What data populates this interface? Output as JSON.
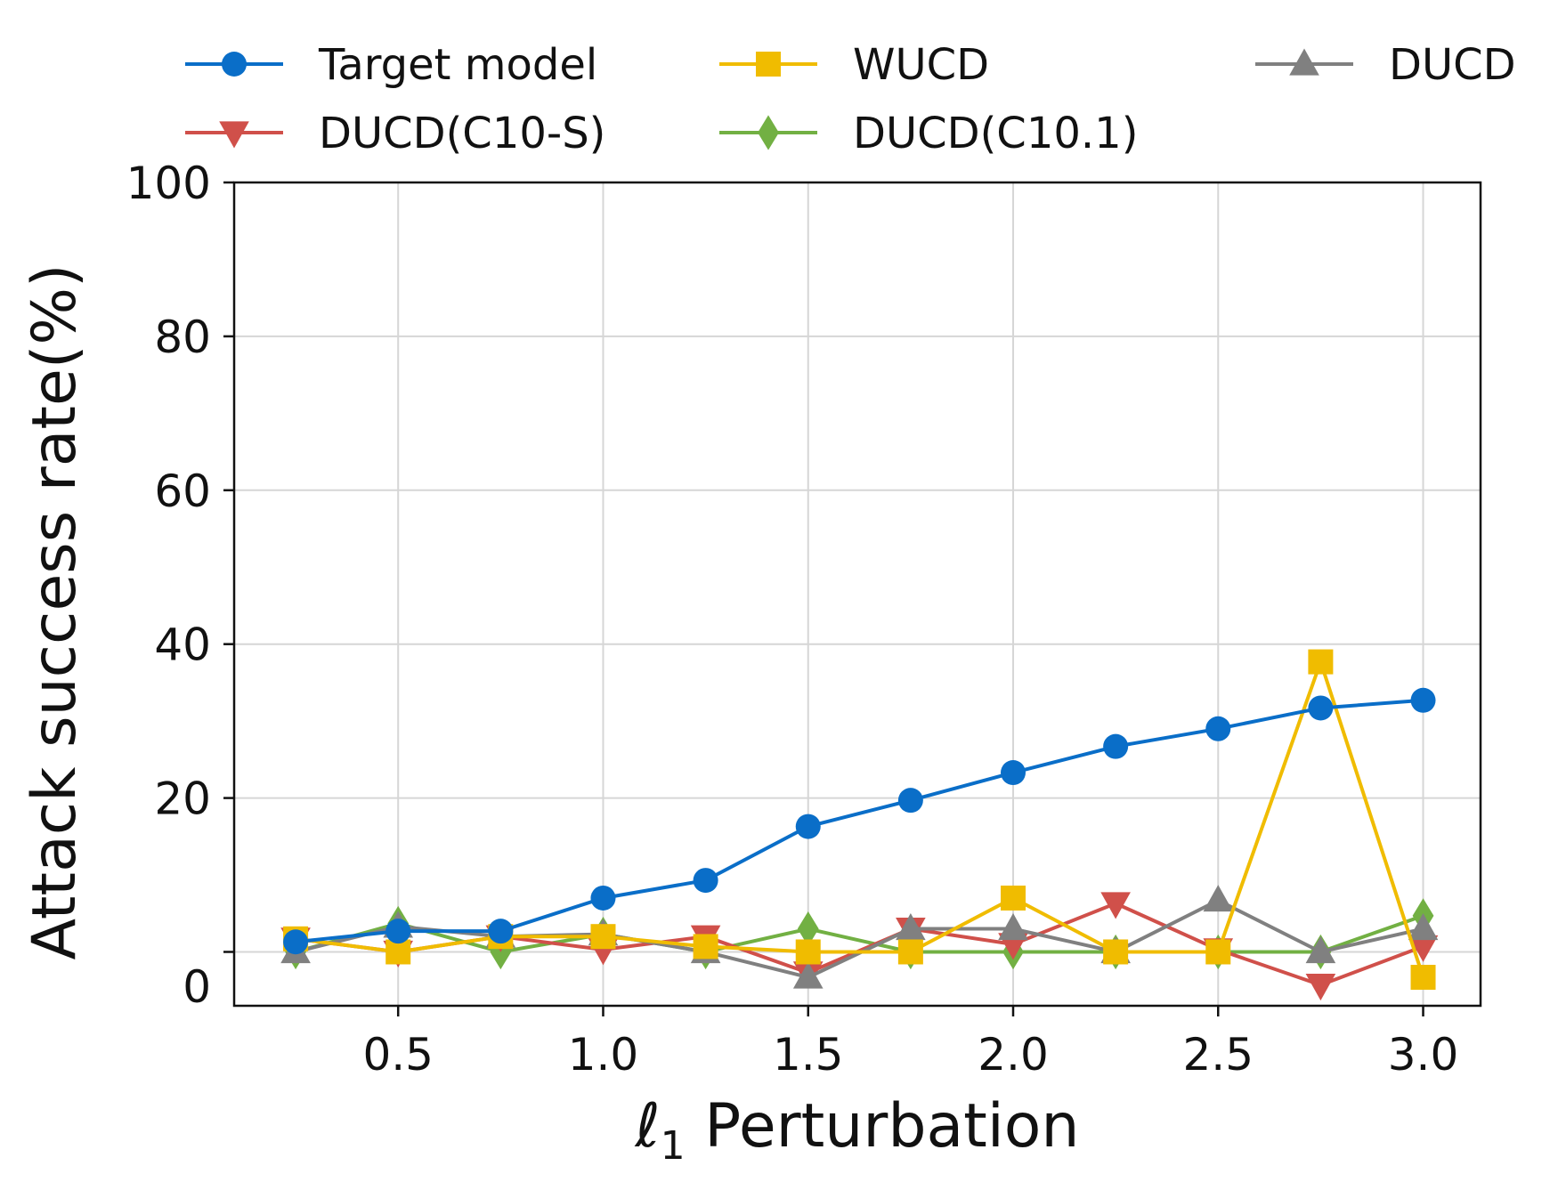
{
  "chart_data": {
    "type": "line",
    "xlabel_math": "ℓ",
    "xlabel_sub": "1",
    "xlabel_rest": " Perturbation",
    "ylabel": "Attack success rate(%)",
    "xlim": [
      0.1,
      3.14
    ],
    "ylim": [
      -7,
      100
    ],
    "xticks": [
      0.5,
      1.0,
      1.5,
      2.0,
      2.5,
      3.0
    ],
    "xtick_labels": [
      "0.5",
      "1.0",
      "1.5",
      "2.0",
      "2.5",
      "3.0"
    ],
    "yticks": [
      0,
      20,
      40,
      60,
      80,
      100
    ],
    "ytick_labels": [
      "0",
      "20",
      "40",
      "60",
      "80",
      "100"
    ],
    "ygrid_extra": [
      0
    ],
    "grid": true,
    "legend_position": "top",
    "x": [
      0.25,
      0.5,
      0.75,
      1.0,
      1.25,
      1.5,
      1.75,
      2.0,
      2.25,
      2.5,
      2.75,
      3.0
    ],
    "series": [
      {
        "name": "Target model",
        "color": "#0a6ec8",
        "marker": "circle",
        "values": [
          1.3,
          2.7,
          2.7,
          7.0,
          9.3,
          16.3,
          19.7,
          23.3,
          26.7,
          29.0,
          31.7,
          32.7
        ]
      },
      {
        "name": "WUCD",
        "color": "#f0bc00",
        "marker": "square",
        "values": [
          1.7,
          0.0,
          2.0,
          2.0,
          0.7,
          0.0,
          0.0,
          7.0,
          0.0,
          0.0,
          37.7,
          -3.3
        ]
      },
      {
        "name": "DUCD",
        "color": "#808080",
        "marker": "triangle-up",
        "values": [
          0.0,
          3.3,
          2.0,
          2.3,
          0.0,
          -3.3,
          3.0,
          3.0,
          0.0,
          6.7,
          0.0,
          3.0
        ]
      },
      {
        "name": "DUCD(C10-S)",
        "color": "#d0504a",
        "marker": "triangle-down",
        "values": [
          1.7,
          0.0,
          2.0,
          0.3,
          2.0,
          -2.7,
          3.0,
          1.0,
          6.3,
          0.3,
          -4.3,
          0.7
        ]
      },
      {
        "name": "DUCD(C10.1)",
        "color": "#72b043",
        "marker": "diamond",
        "values": [
          0.0,
          3.7,
          0.0,
          2.3,
          0.0,
          3.0,
          0.0,
          0.0,
          0.0,
          0.0,
          0.0,
          4.7
        ]
      }
    ],
    "legend_order": [
      0,
      3,
      1,
      4,
      2
    ]
  }
}
